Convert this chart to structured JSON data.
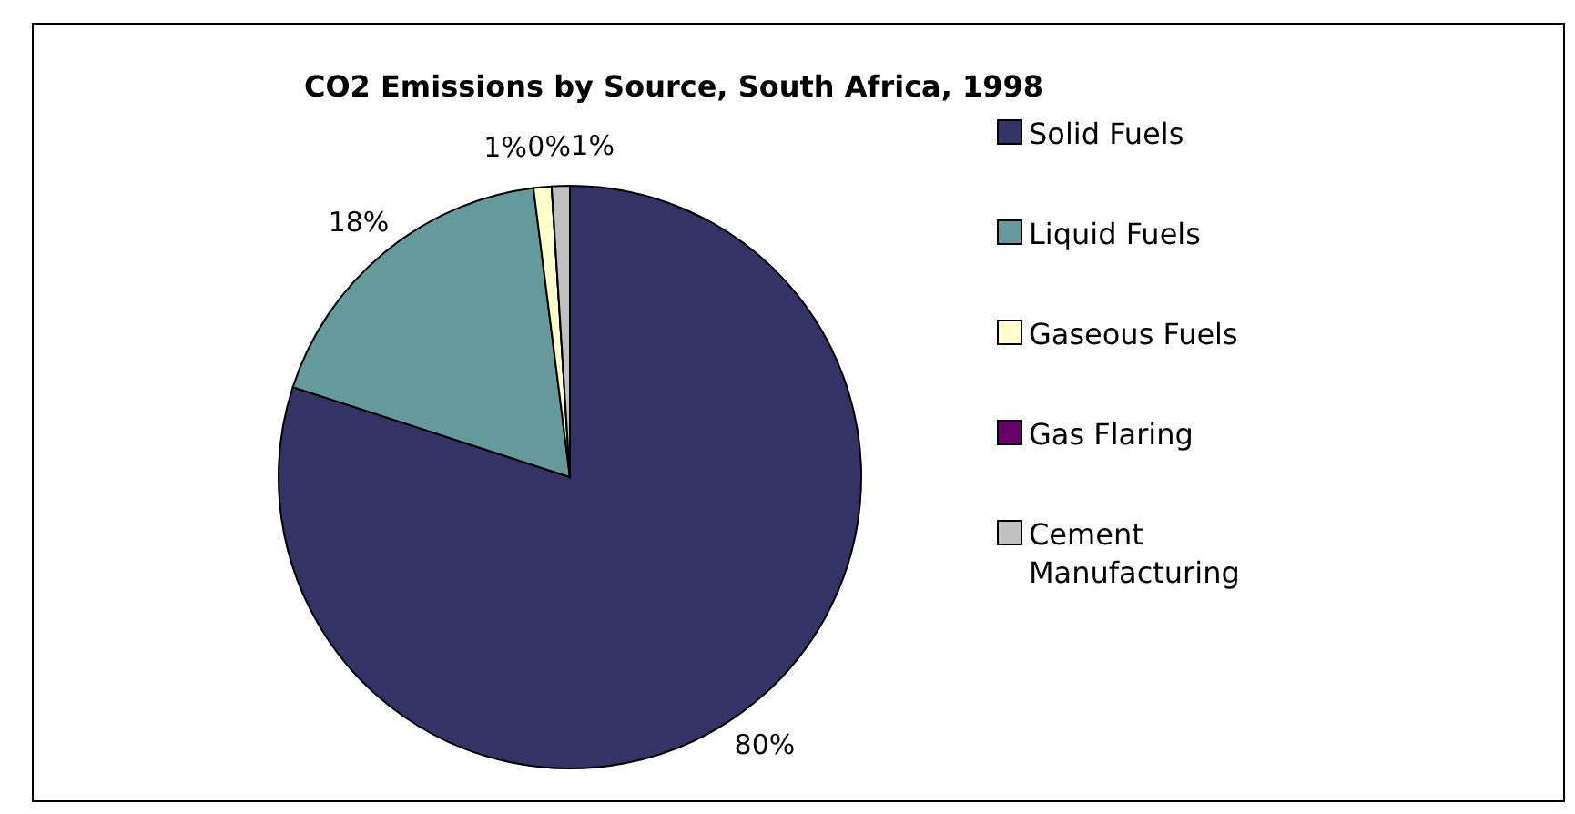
{
  "chart_data": {
    "type": "pie",
    "title": "CO2 Emissions by Source, South Africa, 1998",
    "categories": [
      "Solid Fuels",
      "Liquid Fuels",
      "Gaseous Fuels",
      "Gas Flaring",
      "Cement Manufacturing"
    ],
    "values": [
      80,
      18,
      1,
      0,
      1
    ],
    "colors": [
      "#333366",
      "#669999",
      "#ffffcc",
      "#660066",
      "#c0c0c0"
    ],
    "value_labels": [
      "80%",
      "18%",
      "1%",
      "0%",
      "1%"
    ],
    "data_labels": true,
    "legend": "right"
  }
}
